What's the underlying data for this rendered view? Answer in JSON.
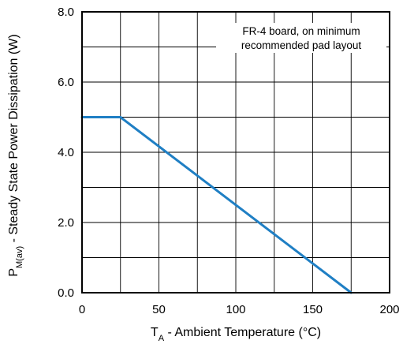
{
  "chart_data": {
    "type": "line",
    "title": "",
    "xlabel": {
      "main": "T",
      "sub": "A",
      "rest": " - Ambient Temperature (°C)"
    },
    "ylabel": {
      "main": "P",
      "sub": "M(av)",
      "rest": " - Steady State Power Dissipation (W)"
    },
    "xlim": [
      0,
      200
    ],
    "ylim": [
      0,
      8
    ],
    "x_ticks": [
      0,
      50,
      100,
      150,
      200
    ],
    "x_tick_labels": [
      "0",
      "50",
      "100",
      "150",
      "200"
    ],
    "y_ticks": [
      0,
      2,
      4,
      6,
      8
    ],
    "y_tick_labels": [
      "0.0",
      "2.0",
      "4.0",
      "6.0",
      "8.0"
    ],
    "x_grid_step": 25,
    "y_grid_step": 1,
    "grid": true,
    "annotation": [
      "FR-4 board, on minimum",
      "recommended pad layout"
    ],
    "series": [
      {
        "color": "#1f7fc4",
        "x": [
          0,
          25,
          175
        ],
        "y": [
          5.0,
          5.0,
          0.0
        ]
      }
    ]
  }
}
